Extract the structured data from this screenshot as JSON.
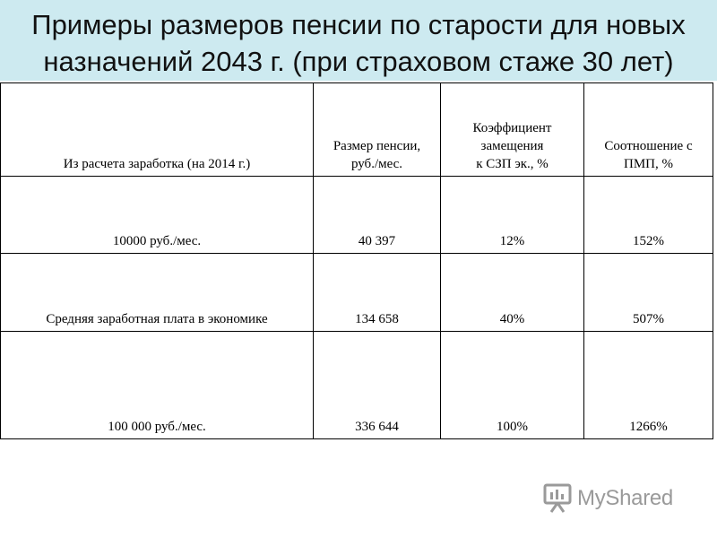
{
  "slide": {
    "title_line1": "Примеры размеров пенсии по старости для новых",
    "title_line2": "назначений 2043 г. (при страховом стаже 30 лет)",
    "title_bg_color": "#cdeaf0"
  },
  "table": {
    "headers": [
      [
        "Из расчета заработка (на 2014 г.)"
      ],
      [
        "Размер пенсии,",
        "руб./мес."
      ],
      [
        "Коэффициент",
        "замещения",
        "к СЗП эк., %"
      ],
      [
        "Соотношение с",
        "ПМП, %"
      ]
    ],
    "rows": [
      [
        "10000 руб./мес.",
        "40 397",
        "12%",
        "152%"
      ],
      [
        "Средняя заработная плата в экономике",
        "134 658",
        "40%",
        "507%"
      ],
      [
        "100 000 руб./мес.",
        "336 644",
        "100%",
        "1266%"
      ]
    ]
  },
  "watermark": {
    "text": "MyShared",
    "icon": "presentation-board-icon"
  }
}
